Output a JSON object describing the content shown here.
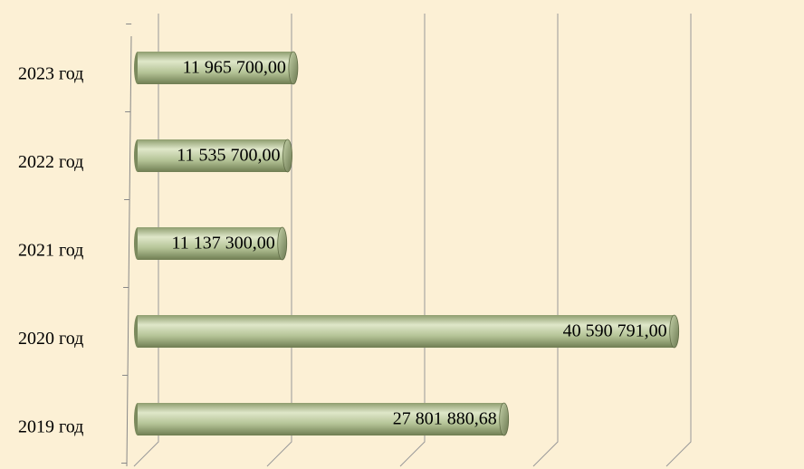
{
  "chart_data": {
    "type": "bar",
    "orientation": "horizontal",
    "categories": [
      "2019 год",
      "2020 год",
      "2021 год",
      "2022 год",
      "2023 год"
    ],
    "values": [
      27801880.68,
      40590791,
      11137300,
      11535700,
      11965700
    ],
    "value_labels": [
      "27 801 880,68",
      "40 590 791,00",
      "11 137 300,00",
      "11 535 700,00",
      "11 965 700,00"
    ],
    "color": "#a9b98a",
    "xlim": [
      0,
      50000000
    ],
    "xticks": [
      0,
      10000000,
      20000000,
      30000000,
      40000000
    ],
    "grid": true
  }
}
